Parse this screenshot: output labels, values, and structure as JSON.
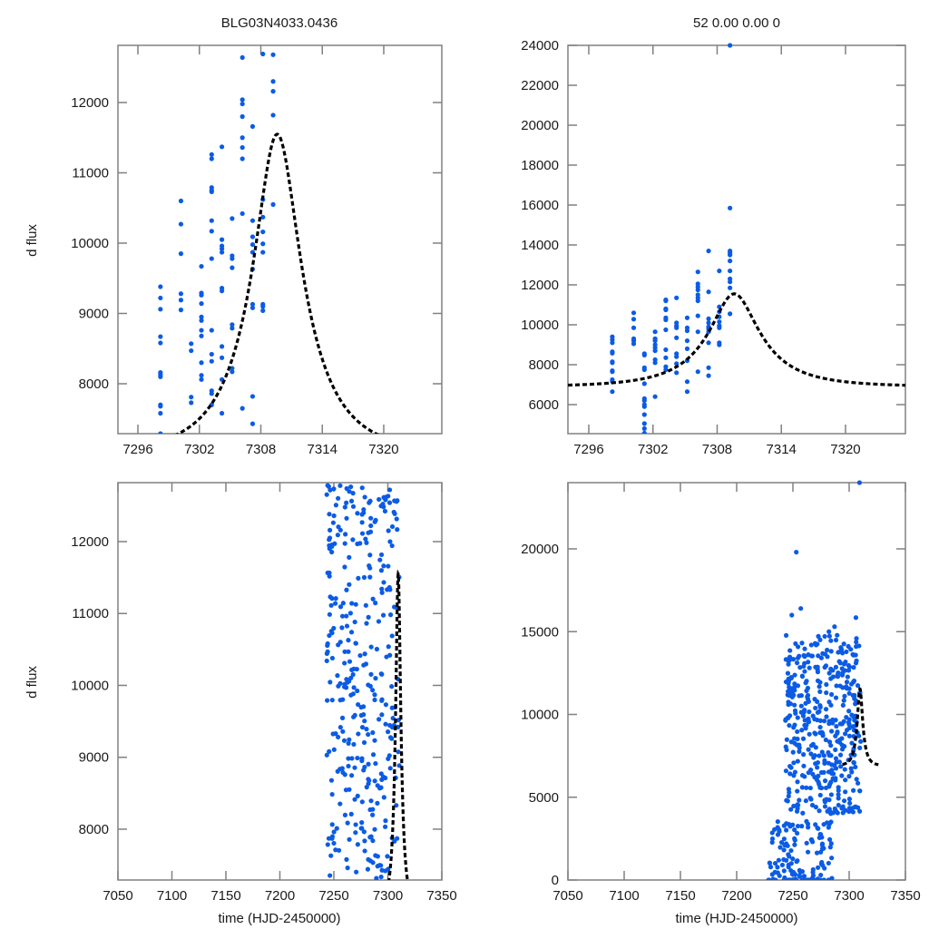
{
  "figure": {
    "titles": {
      "top_left": "BLG03N4033.0436",
      "top_right": "52  0.00  0.00  0"
    },
    "ylabel": "d flux",
    "xlabel": "time (HJD-2450000)"
  },
  "chart_data": [
    {
      "id": "top-left",
      "type": "scatter",
      "title": "BLG03N4033.0436",
      "xlabel": "",
      "ylabel": "d flux",
      "xlim": [
        7294.05,
        7325.67
      ],
      "ylim": [
        7290,
        12813
      ],
      "xticks": [
        7296,
        7302,
        7308,
        7314,
        7320
      ],
      "yticks": [
        8000,
        9000,
        10000,
        11000,
        12000
      ],
      "grid": false,
      "points": [
        [
          7298.2,
          9380
        ],
        [
          7298.2,
          9220
        ],
        [
          7298.2,
          9060
        ],
        [
          7298.2,
          8670
        ],
        [
          7298.2,
          8580
        ],
        [
          7298.2,
          8160
        ],
        [
          7298.2,
          8130
        ],
        [
          7298.2,
          8100
        ],
        [
          7298.2,
          7700
        ],
        [
          7298.2,
          7680
        ],
        [
          7298.2,
          7580
        ],
        [
          7298.2,
          7290
        ],
        [
          7300.2,
          10600
        ],
        [
          7300.2,
          10270
        ],
        [
          7300.2,
          9850
        ],
        [
          7300.2,
          9280
        ],
        [
          7300.2,
          9190
        ],
        [
          7300.2,
          9050
        ],
        [
          7301.2,
          8570
        ],
        [
          7301.2,
          8470
        ],
        [
          7301.2,
          7810
        ],
        [
          7301.2,
          7730
        ],
        [
          7302.2,
          9670
        ],
        [
          7302.2,
          9290
        ],
        [
          7302.2,
          9260
        ],
        [
          7302.2,
          9140
        ],
        [
          7302.2,
          8950
        ],
        [
          7302.2,
          8900
        ],
        [
          7302.2,
          8760
        ],
        [
          7302.2,
          8680
        ],
        [
          7302.2,
          8300
        ],
        [
          7302.2,
          8120
        ],
        [
          7302.2,
          8060
        ],
        [
          7303.2,
          11260
        ],
        [
          7303.2,
          11200
        ],
        [
          7303.2,
          10790
        ],
        [
          7303.2,
          10750
        ],
        [
          7303.2,
          10730
        ],
        [
          7303.2,
          10320
        ],
        [
          7303.2,
          10170
        ],
        [
          7303.2,
          9780
        ],
        [
          7303.2,
          8760
        ],
        [
          7303.2,
          8420
        ],
        [
          7303.2,
          8320
        ],
        [
          7303.2,
          7900
        ],
        [
          7303.2,
          7860
        ],
        [
          7303.2,
          7700
        ],
        [
          7304.2,
          11370
        ],
        [
          7304.2,
          10050
        ],
        [
          7304.2,
          9960
        ],
        [
          7304.2,
          9920
        ],
        [
          7304.2,
          9870
        ],
        [
          7304.2,
          9360
        ],
        [
          7304.2,
          9320
        ],
        [
          7304.2,
          8530
        ],
        [
          7304.2,
          8370
        ],
        [
          7304.2,
          8060
        ],
        [
          7304.2,
          7580
        ],
        [
          7305.2,
          10350
        ],
        [
          7305.2,
          9820
        ],
        [
          7305.2,
          9780
        ],
        [
          7305.2,
          9650
        ],
        [
          7305.2,
          8840
        ],
        [
          7305.2,
          8790
        ],
        [
          7305.2,
          8220
        ],
        [
          7305.2,
          8170
        ],
        [
          7306.2,
          12640
        ],
        [
          7306.2,
          12040
        ],
        [
          7306.2,
          11980
        ],
        [
          7306.2,
          11800
        ],
        [
          7306.2,
          11500
        ],
        [
          7306.2,
          11360
        ],
        [
          7306.2,
          11200
        ],
        [
          7306.2,
          10420
        ],
        [
          7306.2,
          7650
        ],
        [
          7307.2,
          11660
        ],
        [
          7307.2,
          10320
        ],
        [
          7307.2,
          10090
        ],
        [
          7307.2,
          9980
        ],
        [
          7307.2,
          9870
        ],
        [
          7307.2,
          9630
        ],
        [
          7307.2,
          9130
        ],
        [
          7307.2,
          9080
        ],
        [
          7307.2,
          7820
        ],
        [
          7307.2,
          7430
        ],
        [
          7308.2,
          12690
        ],
        [
          7308.2,
          10620
        ],
        [
          7308.2,
          10370
        ],
        [
          7308.2,
          10160
        ],
        [
          7308.2,
          9990
        ],
        [
          7308.2,
          9870
        ],
        [
          7308.2,
          9130
        ],
        [
          7308.2,
          9100
        ],
        [
          7308.2,
          9040
        ],
        [
          7309.2,
          12680
        ],
        [
          7309.2,
          12300
        ],
        [
          7309.2,
          12160
        ],
        [
          7309.2,
          11820
        ],
        [
          7309.2,
          10550
        ]
      ],
      "model": {
        "kind": "point-lens",
        "t0": 7309.6,
        "tE": 6.2,
        "u0": 0.38,
        "Fs": 6050,
        "Fb": 0,
        "peak": 11550
      }
    },
    {
      "id": "top-right",
      "type": "scatter",
      "title": "52  0.00  0.00  0",
      "xlabel": "",
      "ylabel": "",
      "xlim": [
        7294.05,
        7325.6
      ],
      "ylim": [
        4545,
        24000
      ],
      "xticks": [
        7296,
        7302,
        7308,
        7314,
        7320
      ],
      "yticks": [
        6000,
        8000,
        10000,
        12000,
        14000,
        16000,
        18000,
        20000,
        22000,
        24000
      ],
      "grid": false,
      "points": [
        [
          7298.2,
          9400
        ],
        [
          7298.2,
          9250
        ],
        [
          7298.2,
          9100
        ],
        [
          7298.2,
          8650
        ],
        [
          7298.2,
          8580
        ],
        [
          7298.2,
          8150
        ],
        [
          7298.2,
          8100
        ],
        [
          7298.2,
          7700
        ],
        [
          7298.2,
          7650
        ],
        [
          7298.2,
          7250
        ],
        [
          7298.2,
          7150
        ],
        [
          7298.2,
          6650
        ],
        [
          7300.2,
          10600
        ],
        [
          7300.2,
          10280
        ],
        [
          7300.2,
          9850
        ],
        [
          7300.2,
          9300
        ],
        [
          7300.2,
          9200
        ],
        [
          7300.2,
          9050
        ],
        [
          7301.2,
          8550
        ],
        [
          7301.2,
          8480
        ],
        [
          7301.2,
          7850
        ],
        [
          7301.2,
          7750
        ],
        [
          7301.2,
          7050
        ],
        [
          7301.2,
          6300
        ],
        [
          7301.2,
          6200
        ],
        [
          7301.2,
          6000
        ],
        [
          7301.2,
          5900
        ],
        [
          7301.2,
          5500
        ],
        [
          7301.2,
          5050
        ],
        [
          7301.2,
          4800
        ],
        [
          7301.2,
          4570
        ],
        [
          7302.2,
          9650
        ],
        [
          7302.2,
          9300
        ],
        [
          7302.2,
          9200
        ],
        [
          7302.2,
          9000
        ],
        [
          7302.2,
          8850
        ],
        [
          7302.2,
          8700
        ],
        [
          7302.2,
          8250
        ],
        [
          7302.2,
          8100
        ],
        [
          7302.2,
          6400
        ],
        [
          7303.2,
          11250
        ],
        [
          7303.2,
          11200
        ],
        [
          7303.2,
          10800
        ],
        [
          7303.2,
          10750
        ],
        [
          7303.2,
          10350
        ],
        [
          7303.2,
          10250
        ],
        [
          7303.2,
          9750
        ],
        [
          7303.2,
          8750
        ],
        [
          7303.2,
          8350
        ],
        [
          7303.2,
          7900
        ],
        [
          7303.2,
          7750
        ],
        [
          7304.2,
          11350
        ],
        [
          7304.2,
          10100
        ],
        [
          7304.2,
          9950
        ],
        [
          7304.2,
          9850
        ],
        [
          7304.2,
          9350
        ],
        [
          7304.2,
          8550
        ],
        [
          7304.2,
          8400
        ],
        [
          7304.2,
          8050
        ],
        [
          7304.2,
          7600
        ],
        [
          7305.2,
          10350
        ],
        [
          7305.2,
          9850
        ],
        [
          7305.2,
          9700
        ],
        [
          7305.2,
          9200
        ],
        [
          7305.2,
          8800
        ],
        [
          7305.2,
          8200
        ],
        [
          7305.2,
          7150
        ],
        [
          7305.2,
          6650
        ],
        [
          7306.2,
          12650
        ],
        [
          7306.2,
          12050
        ],
        [
          7306.2,
          11900
        ],
        [
          7306.2,
          11750
        ],
        [
          7306.2,
          11500
        ],
        [
          7306.2,
          11350
        ],
        [
          7306.2,
          11200
        ],
        [
          7306.2,
          10450
        ],
        [
          7306.2,
          9650
        ],
        [
          7306.2,
          7650
        ],
        [
          7307.2,
          13700
        ],
        [
          7307.2,
          11650
        ],
        [
          7307.2,
          10300
        ],
        [
          7307.2,
          10100
        ],
        [
          7307.2,
          9900
        ],
        [
          7307.2,
          9800
        ],
        [
          7307.2,
          9650
        ],
        [
          7307.2,
          9100
        ],
        [
          7307.2,
          7850
        ],
        [
          7307.2,
          7450
        ],
        [
          7308.2,
          12700
        ],
        [
          7308.2,
          10900
        ],
        [
          7308.2,
          10650
        ],
        [
          7308.2,
          10400
        ],
        [
          7308.2,
          10150
        ],
        [
          7308.2,
          9950
        ],
        [
          7308.2,
          9850
        ],
        [
          7308.2,
          9100
        ],
        [
          7308.2,
          9000
        ],
        [
          7309.2,
          24000
        ],
        [
          7309.2,
          15850
        ],
        [
          7309.2,
          13700
        ],
        [
          7309.2,
          13600
        ],
        [
          7309.2,
          13500
        ],
        [
          7309.2,
          13200
        ],
        [
          7309.2,
          12700
        ],
        [
          7309.2,
          12300
        ],
        [
          7309.2,
          12150
        ],
        [
          7309.2,
          11850
        ],
        [
          7309.2,
          10550
        ]
      ],
      "model": {
        "kind": "point-lens",
        "t0": 7309.6,
        "tE": 6.2,
        "u0": 0.38,
        "peak": 11550
      }
    },
    {
      "id": "bottom-left",
      "type": "scatter",
      "title": "",
      "xlabel": "time (HJD-2450000)",
      "ylabel": "d flux",
      "xlim": [
        7050,
        7350
      ],
      "ylim": [
        7293,
        12820
      ],
      "xticks": [
        7050,
        7100,
        7150,
        7200,
        7250,
        7300,
        7350
      ],
      "yticks": [
        8000,
        9000,
        10000,
        11000,
        12000
      ],
      "grid": false,
      "cluster": {
        "x_range": [
          7243,
          7310
        ],
        "y_range": [
          7300,
          12800
        ],
        "count": 340,
        "seed": 11
      },
      "model": {
        "kind": "point-lens",
        "t0": 7309.6,
        "tE": 6.2,
        "u0": 0.38,
        "peak": 11550,
        "t_range": [
          7294,
          7326
        ]
      }
    },
    {
      "id": "bottom-right",
      "type": "scatter",
      "title": "",
      "xlabel": "time (HJD-2450000)",
      "ylabel": "",
      "xlim": [
        7050,
        7350
      ],
      "ylim": [
        0,
        24000
      ],
      "xticks": [
        7050,
        7100,
        7150,
        7200,
        7250,
        7300,
        7350
      ],
      "yticks": [
        0,
        5000,
        10000,
        15000,
        20000
      ],
      "grid": false,
      "outliers": [
        [
          7309.2,
          24000
        ],
        [
          7253,
          19800
        ],
        [
          7257,
          16400
        ],
        [
          7249,
          16000
        ],
        [
          7306,
          15850
        ],
        [
          7287,
          15300
        ],
        [
          7282,
          15000
        ]
      ],
      "cluster": {
        "x_range": [
          7243,
          7310
        ],
        "y_range": [
          4000,
          14800
        ],
        "count": 420,
        "seed": 23
      },
      "low_cluster": {
        "x_range": [
          7228,
          7285
        ],
        "y_range": [
          0,
          3600
        ],
        "count": 110,
        "seed": 37
      },
      "model": {
        "kind": "point-lens",
        "t0": 7309.6,
        "tE": 6.2,
        "u0": 0.38,
        "peak": 11550,
        "t_range": [
          7294,
          7326
        ]
      }
    }
  ]
}
